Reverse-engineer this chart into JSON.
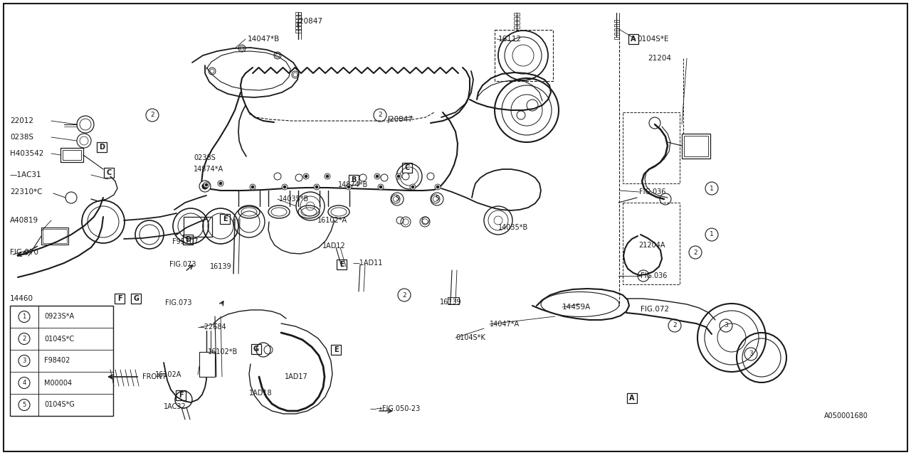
{
  "bg_color": "#ffffff",
  "line_color": "#1a1a1a",
  "fig_width": 12.8,
  "fig_height": 6.4,
  "dpi": 100,
  "legend_items": [
    {
      "num": "1",
      "code": "0923S*A"
    },
    {
      "num": "2",
      "code": "0104S*C"
    },
    {
      "num": "3",
      "code": "F98402"
    },
    {
      "num": "4",
      "code": "M00004"
    },
    {
      "num": "5",
      "code": "0104S*G"
    }
  ]
}
